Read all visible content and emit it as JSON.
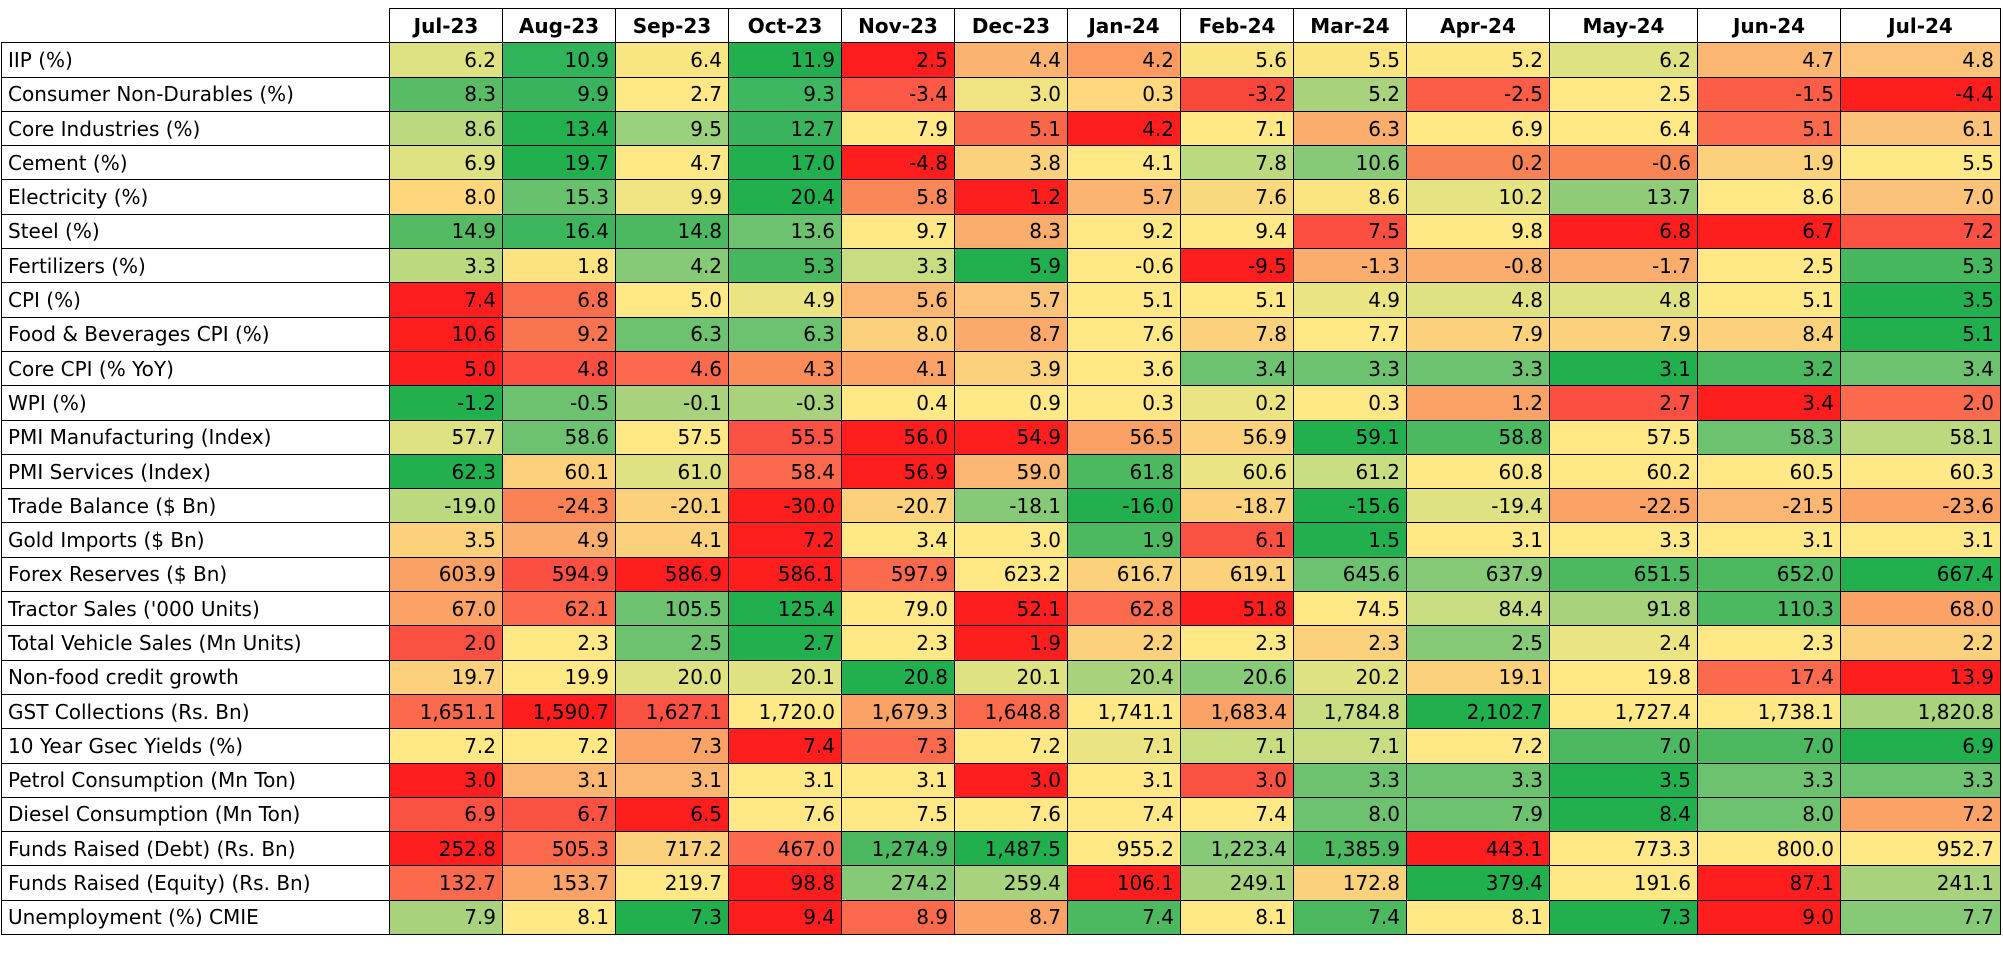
{
  "table": {
    "columns": [
      "Jul-23",
      "Aug-23",
      "Sep-23",
      "Oct-23",
      "Nov-23",
      "Dec-23",
      "Jan-24",
      "Feb-24",
      "Mar-24",
      "Apr-24",
      "May-24",
      "Jun-24",
      "Jul-24"
    ],
    "rows": [
      {
        "label": "IIP (%)",
        "values": [
          "6.2",
          "10.9",
          "6.4",
          "11.9",
          "2.5",
          "4.4",
          "4.2",
          "5.6",
          "5.5",
          "5.2",
          "6.2",
          "4.7",
          "4.8"
        ]
      },
      {
        "label": "Consumer Non-Durables (%)",
        "values": [
          "8.3",
          "9.9",
          "2.7",
          "9.3",
          "-3.4",
          "3.0",
          "0.3",
          "-3.2",
          "5.2",
          "-2.5",
          "2.5",
          "-1.5",
          "-4.4"
        ]
      },
      {
        "label": "Core Industries (%)",
        "values": [
          "8.6",
          "13.4",
          "9.5",
          "12.7",
          "7.9",
          "5.1",
          "4.2",
          "7.1",
          "6.3",
          "6.9",
          "6.4",
          "5.1",
          "6.1"
        ]
      },
      {
        "label": "Cement (%)",
        "values": [
          "6.9",
          "19.7",
          "4.7",
          "17.0",
          "-4.8",
          "3.8",
          "4.1",
          "7.8",
          "10.6",
          "0.2",
          "-0.6",
          "1.9",
          "5.5"
        ]
      },
      {
        "label": "Electricity (%)",
        "values": [
          "8.0",
          "15.3",
          "9.9",
          "20.4",
          "5.8",
          "1.2",
          "5.7",
          "7.6",
          "8.6",
          "10.2",
          "13.7",
          "8.6",
          "7.0"
        ]
      },
      {
        "label": "Steel (%)",
        "values": [
          "14.9",
          "16.4",
          "14.8",
          "13.6",
          "9.7",
          "8.3",
          "9.2",
          "9.4",
          "7.5",
          "9.8",
          "6.8",
          "6.7",
          "7.2"
        ]
      },
      {
        "label": "Fertilizers (%)",
        "values": [
          "3.3",
          "1.8",
          "4.2",
          "5.3",
          "3.3",
          "5.9",
          "-0.6",
          "-9.5",
          "-1.3",
          "-0.8",
          "-1.7",
          "2.5",
          "5.3"
        ]
      },
      {
        "label": "CPI (%)",
        "values": [
          "7.4",
          "6.8",
          "5.0",
          "4.9",
          "5.6",
          "5.7",
          "5.1",
          "5.1",
          "4.9",
          "4.8",
          "4.8",
          "5.1",
          "3.5"
        ]
      },
      {
        "label": "Food & Beverages CPI (%)",
        "values": [
          "10.6",
          "9.2",
          "6.3",
          "6.3",
          "8.0",
          "8.7",
          "7.6",
          "7.8",
          "7.7",
          "7.9",
          "7.9",
          "8.4",
          "5.1"
        ]
      },
      {
        "label": "Core CPI (% YoY)",
        "values": [
          "5.0",
          "4.8",
          "4.6",
          "4.3",
          "4.1",
          "3.9",
          "3.6",
          "3.4",
          "3.3",
          "3.3",
          "3.1",
          "3.2",
          "3.4"
        ]
      },
      {
        "label": "WPI (%)",
        "values": [
          "-1.2",
          "-0.5",
          "-0.1",
          "-0.3",
          "0.4",
          "0.9",
          "0.3",
          "0.2",
          "0.3",
          "1.2",
          "2.7",
          "3.4",
          "2.0"
        ]
      },
      {
        "label": "PMI Manufacturing (Index)",
        "values": [
          "57.7",
          "58.6",
          "57.5",
          "55.5",
          "56.0",
          "54.9",
          "56.5",
          "56.9",
          "59.1",
          "58.8",
          "57.5",
          "58.3",
          "58.1"
        ]
      },
      {
        "label": "PMI Services (Index)",
        "values": [
          "62.3",
          "60.1",
          "61.0",
          "58.4",
          "56.9",
          "59.0",
          "61.8",
          "60.6",
          "61.2",
          "60.8",
          "60.2",
          "60.5",
          "60.3"
        ]
      },
      {
        "label": "Trade Balance ($ Bn)",
        "values": [
          "-19.0",
          "-24.3",
          "-20.1",
          "-30.0",
          "-20.7",
          "-18.1",
          "-16.0",
          "-18.7",
          "-15.6",
          "-19.4",
          "-22.5",
          "-21.5",
          "-23.6"
        ]
      },
      {
        "label": "Gold Imports ($ Bn)",
        "values": [
          "3.5",
          "4.9",
          "4.1",
          "7.2",
          "3.4",
          "3.0",
          "1.9",
          "6.1",
          "1.5",
          "3.1",
          "3.3",
          "3.1",
          "3.1"
        ]
      },
      {
        "label": "Forex Reserves ($ Bn)",
        "values": [
          "603.9",
          "594.9",
          "586.9",
          "586.1",
          "597.9",
          "623.2",
          "616.7",
          "619.1",
          "645.6",
          "637.9",
          "651.5",
          "652.0",
          "667.4"
        ]
      },
      {
        "label": "Tractor Sales ('000 Units)",
        "values": [
          "67.0",
          "62.1",
          "105.5",
          "125.4",
          "79.0",
          "52.1",
          "62.8",
          "51.8",
          "74.5",
          "84.4",
          "91.8",
          "110.3",
          "68.0"
        ]
      },
      {
        "label": "Total Vehicle Sales (Mn Units)",
        "values": [
          "2.0",
          "2.3",
          "2.5",
          "2.7",
          "2.3",
          "1.9",
          "2.2",
          "2.3",
          "2.3",
          "2.5",
          "2.4",
          "2.3",
          "2.2"
        ]
      },
      {
        "label": "Non-food credit growth",
        "values": [
          "19.7",
          "19.9",
          "20.0",
          "20.1",
          "20.8",
          "20.1",
          "20.4",
          "20.6",
          "20.2",
          "19.1",
          "19.8",
          "17.4",
          "13.9"
        ]
      },
      {
        "label": "GST Collections (Rs. Bn)",
        "values": [
          "1,651.1",
          "1,590.7",
          "1,627.1",
          "1,720.0",
          "1,679.3",
          "1,648.8",
          "1,741.1",
          "1,683.4",
          "1,784.8",
          "2,102.7",
          "1,727.4",
          "1,738.1",
          "1,820.8"
        ]
      },
      {
        "label": "10 Year Gsec Yields (%)",
        "values": [
          "7.2",
          "7.2",
          "7.3",
          "7.4",
          "7.3",
          "7.2",
          "7.1",
          "7.1",
          "7.1",
          "7.2",
          "7.0",
          "7.0",
          "6.9"
        ]
      },
      {
        "label": "Petrol Consumption (Mn Ton)",
        "values": [
          "3.0",
          "3.1",
          "3.1",
          "3.1",
          "3.1",
          "3.0",
          "3.1",
          "3.0",
          "3.3",
          "3.3",
          "3.5",
          "3.3",
          "3.3"
        ]
      },
      {
        "label": "Diesel Consumption (Mn Ton)",
        "values": [
          "6.9",
          "6.7",
          "6.5",
          "7.6",
          "7.5",
          "7.6",
          "7.4",
          "7.4",
          "8.0",
          "7.9",
          "8.4",
          "8.0",
          "7.2"
        ]
      },
      {
        "label": "Funds Raised (Debt) (Rs. Bn)",
        "values": [
          "252.8",
          "505.3",
          "717.2",
          "467.0",
          "1,274.9",
          "1,487.5",
          "955.2",
          "1,223.4",
          "1,385.9",
          "443.1",
          "773.3",
          "800.0",
          "952.7"
        ]
      },
      {
        "label": "Funds Raised (Equity) (Rs. Bn)",
        "values": [
          "132.7",
          "153.7",
          "219.7",
          "98.8",
          "274.2",
          "259.4",
          "106.1",
          "249.1",
          "172.8",
          "379.4",
          "191.6",
          "87.1",
          "241.1"
        ]
      },
      {
        "label": "Unemployment (%) CMIE",
        "values": [
          "7.9",
          "8.1",
          "7.3",
          "9.4",
          "8.9",
          "8.7",
          "7.4",
          "8.1",
          "7.4",
          "8.1",
          "7.3",
          "9.0",
          "7.7"
        ]
      }
    ],
    "cell_colors": [
      [
        "#dfe283",
        "#2fb45a",
        "#f8e682",
        "#22b04f",
        "#ff1e1e",
        "#fbb470",
        "#fc9b61",
        "#f9e683",
        "#fbe580",
        "#fde784",
        "#dfe283",
        "#fbb771",
        "#fcc37a"
      ],
      [
        "#59bb63",
        "#3ab45c",
        "#ffe885",
        "#3fb660",
        "#fb5845",
        "#f0e482",
        "#ffd77d",
        "#f9473b",
        "#a8d27b",
        "#fb5d47",
        "#ffe885",
        "#fb5d47",
        "#ff1e1e"
      ],
      [
        "#bbd97f",
        "#24b04f",
        "#9bd07c",
        "#3ab45c",
        "#ffe885",
        "#f9674a",
        "#ff1e1e",
        "#ffe885",
        "#fbad6d",
        "#ffe885",
        "#ffe885",
        "#fb6a4c",
        "#fbc27a"
      ],
      [
        "#dfe283",
        "#22b04f",
        "#ffe885",
        "#22b04f",
        "#ff1e1e",
        "#fbd27b",
        "#ffe885",
        "#bbd97f",
        "#86c977",
        "#f98254",
        "#f98454",
        "#fbd27b",
        "#ffe885"
      ],
      [
        "#fed77d",
        "#68c16d",
        "#f0e482",
        "#22b04f",
        "#fa8758",
        "#ff1e1e",
        "#fbb570",
        "#f8d97e",
        "#fbe580",
        "#e6e383",
        "#90cc78",
        "#ffe885",
        "#fbc27a"
      ],
      [
        "#54bb63",
        "#3cb55d",
        "#4cb860",
        "#6dc26f",
        "#ffe885",
        "#fbad6d",
        "#ffe885",
        "#ffe885",
        "#fb4f41",
        "#ffe885",
        "#ff1e1e",
        "#ff1e1e",
        "#fb5142"
      ],
      [
        "#bbd97f",
        "#fbe37f",
        "#86c977",
        "#47b75f",
        "#c8dd82",
        "#22b04f",
        "#ffe885",
        "#ff1e1e",
        "#fbad6d",
        "#fbad6d",
        "#fbad6d",
        "#ffe885",
        "#47b75f"
      ],
      [
        "#ff1e1e",
        "#fa6e4d",
        "#ffe885",
        "#ebe483",
        "#fbb771",
        "#fcc37a",
        "#ffe885",
        "#ffe885",
        "#ebe483",
        "#dfe283",
        "#dfe283",
        "#ffe885",
        "#22b04f"
      ],
      [
        "#ff1e1e",
        "#f9754f",
        "#6dc26f",
        "#6dc26f",
        "#fbd27b",
        "#fbaa6c",
        "#ffe885",
        "#fbd27b",
        "#ffe885",
        "#fbd27b",
        "#fbd27b",
        "#fbd27b",
        "#22b04f"
      ],
      [
        "#ff1e1e",
        "#fb4f41",
        "#fb6a4c",
        "#f98c59",
        "#fba266",
        "#fbd27b",
        "#ffe885",
        "#6dc26f",
        "#6dc26f",
        "#6dc26f",
        "#22b04f",
        "#4cb860",
        "#6dc26f"
      ],
      [
        "#22b04f",
        "#6dc26f",
        "#a8d27b",
        "#a8d27b",
        "#ffe885",
        "#ffe885",
        "#ffe885",
        "#ebe483",
        "#ffe885",
        "#fba266",
        "#fb4f41",
        "#ff1e1e",
        "#fb6a4c"
      ],
      [
        "#dfe283",
        "#6dc26f",
        "#ffe885",
        "#fb5142",
        "#ff1e1e",
        "#ff1e1e",
        "#f9a064",
        "#fbd27b",
        "#22b04f",
        "#4cb860",
        "#ffe885",
        "#6dc26f",
        "#bbd97f"
      ],
      [
        "#22b04f",
        "#fbd27b",
        "#dfe283",
        "#fb6a4c",
        "#ff1e1e",
        "#fbb771",
        "#4cb860",
        "#ebe483",
        "#c8dd82",
        "#ffe885",
        "#ffe885",
        "#ffe885",
        "#ffe885"
      ],
      [
        "#bbd97f",
        "#f98254",
        "#fbd27b",
        "#ff1e1e",
        "#fbd27b",
        "#86c977",
        "#22b04f",
        "#fbd27b",
        "#22b04f",
        "#dfe283",
        "#fba266",
        "#fbb771",
        "#fba266"
      ],
      [
        "#fbd27b",
        "#fbad6d",
        "#fbd27b",
        "#ff1e1e",
        "#ffe885",
        "#ffe885",
        "#4cb860",
        "#fb5142",
        "#22b04f",
        "#ffe885",
        "#ffe885",
        "#ffe885",
        "#ffe885"
      ],
      [
        "#f9a064",
        "#fb4f41",
        "#ff1e1e",
        "#ff1e1e",
        "#fb6a4c",
        "#ffe885",
        "#fbd27b",
        "#fbd27b",
        "#6dc26f",
        "#86c977",
        "#4cb860",
        "#4cb860",
        "#22b04f"
      ],
      [
        "#fba266",
        "#fb6a4c",
        "#6dc26f",
        "#22b04f",
        "#ffe885",
        "#ff1e1e",
        "#fb6a4c",
        "#ff1e1e",
        "#ffe885",
        "#c8dd82",
        "#a8d27b",
        "#4cb860",
        "#fba266"
      ],
      [
        "#fb5142",
        "#ffe885",
        "#6dc26f",
        "#22b04f",
        "#ffe885",
        "#ff1e1e",
        "#fbd27b",
        "#ffe885",
        "#fbd27b",
        "#86c977",
        "#ebe483",
        "#ffe885",
        "#fbd27b"
      ],
      [
        "#fbd27b",
        "#ffe885",
        "#dfe283",
        "#dfe283",
        "#22b04f",
        "#dfe283",
        "#a8d27b",
        "#86c977",
        "#dfe283",
        "#fbd27b",
        "#ffe885",
        "#fb6a4c",
        "#ff1e1e"
      ],
      [
        "#fb6a4c",
        "#ff1e1e",
        "#fb5142",
        "#ffe885",
        "#fba266",
        "#fb6a4c",
        "#ffe885",
        "#fba266",
        "#c8dd82",
        "#22b04f",
        "#ffe885",
        "#ffe885",
        "#a8d27b"
      ],
      [
        "#ffe885",
        "#ffe885",
        "#fba266",
        "#ff1e1e",
        "#fb6a4c",
        "#ffe885",
        "#ebe483",
        "#c8dd82",
        "#c8dd82",
        "#ffe885",
        "#4cb860",
        "#4cb860",
        "#22b04f"
      ],
      [
        "#ff1e1e",
        "#fbb771",
        "#fbb771",
        "#ffe885",
        "#ffe885",
        "#ff1e1e",
        "#ffe885",
        "#fb5142",
        "#6dc26f",
        "#6dc26f",
        "#22b04f",
        "#6dc26f",
        "#6dc26f"
      ],
      [
        "#fb5142",
        "#fb5142",
        "#ff1e1e",
        "#ffe885",
        "#ffe885",
        "#ffe885",
        "#ffe885",
        "#ffe885",
        "#6dc26f",
        "#6dc26f",
        "#22b04f",
        "#6dc26f",
        "#fba266"
      ],
      [
        "#ff1e1e",
        "#fb6a4c",
        "#fbd27b",
        "#fb6a4c",
        "#4cb860",
        "#22b04f",
        "#ffe885",
        "#86c977",
        "#4cb860",
        "#ff1e1e",
        "#ffe885",
        "#ffe885",
        "#ffe885"
      ],
      [
        "#fb6a4c",
        "#fba266",
        "#ffe885",
        "#ff1e1e",
        "#86c977",
        "#a8d27b",
        "#ff1e1e",
        "#a8d27b",
        "#fbd27b",
        "#22b04f",
        "#ffe885",
        "#ff1e1e",
        "#a8d27b"
      ],
      [
        "#a8d27b",
        "#ffe885",
        "#22b04f",
        "#ff1e1e",
        "#fb6a4c",
        "#fba266",
        "#4cb860",
        "#ffe885",
        "#4cb860",
        "#ffe885",
        "#22b04f",
        "#ff1e1e",
        "#86c977"
      ]
    ]
  }
}
